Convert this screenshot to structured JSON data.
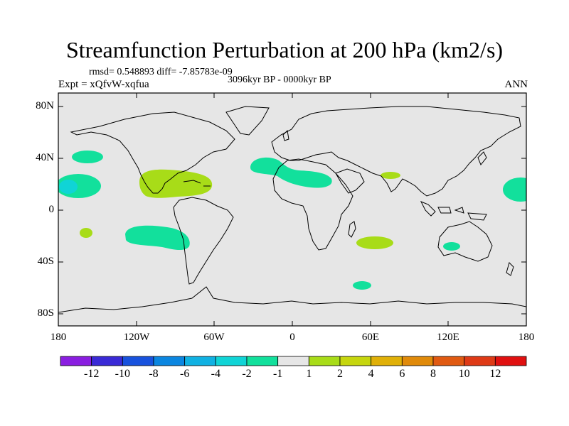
{
  "title": "Streamfunction Perturbation at 200 hPa (km2/s)",
  "stats_line": "rmsd= 0.548893 diff= -7.85783e-09",
  "period": "3096kyr BP - 0000kyr BP",
  "experiment": "Expt = xQfvW-xqfua",
  "season": "ANN",
  "lat_ticks": [
    "80N",
    "40N",
    "0",
    "40S",
    "80S"
  ],
  "lon_ticks": [
    "180",
    "120W",
    "60W",
    "0",
    "60E",
    "120E",
    "180"
  ],
  "colorbar": {
    "labels": [
      "-12",
      "-10",
      "-8",
      "-6",
      "-4",
      "-2",
      "-1",
      "1",
      "2",
      "4",
      "6",
      "8",
      "10",
      "12"
    ],
    "colors": [
      "#8a1ee0",
      "#3a2ad6",
      "#1852dd",
      "#0b86e0",
      "#10b1e2",
      "#10d4d6",
      "#12e09c",
      "#e6e6e6",
      "#a8dc18",
      "#c6d60e",
      "#e0b008",
      "#e08a0a",
      "#e05a12",
      "#de3a16",
      "#e01010"
    ]
  },
  "chart_data": {
    "type": "filled-contour-map",
    "variable": "Streamfunction perturbation at 200 hPa",
    "units": "km2/s",
    "projection": "cylindrical equidistant",
    "lon_range": [
      -180,
      180
    ],
    "lat_range": [
      -90,
      90
    ],
    "anomaly_regions": [
      {
        "name": "north-pacific-east",
        "lon": -150,
        "lat": 38,
        "band": "-2 to -1"
      },
      {
        "name": "hawaii-region",
        "lon": -160,
        "lat": 18,
        "band": "-2 to -1"
      },
      {
        "name": "hawaii-core",
        "lon": -170,
        "lat": 17,
        "band": "-4 to -2"
      },
      {
        "name": "caribbean-gulf",
        "lon": -100,
        "lat": 20,
        "band": "1 to 2"
      },
      {
        "name": "north-atlantic-africa",
        "lon": 0,
        "lat": 28,
        "band": "-2 to -1"
      },
      {
        "name": "india",
        "lon": 75,
        "lat": 25,
        "band": "1 to 2"
      },
      {
        "name": "west-pacific",
        "lon": 175,
        "lat": 15,
        "band": "-2 to -1"
      },
      {
        "name": "south-pacific-small",
        "lon": -155,
        "lat": -18,
        "band": "1 to 2"
      },
      {
        "name": "south-pacific-large",
        "lon": -110,
        "lat": -22,
        "band": "-2 to -1"
      },
      {
        "name": "south-indian-ocean",
        "lon": 64,
        "lat": -25,
        "band": "1 to 2"
      },
      {
        "name": "australia",
        "lon": 122,
        "lat": -28,
        "band": "-2 to -1"
      },
      {
        "name": "southern-ocean",
        "lon": 52,
        "lat": -58,
        "band": "-2 to -1"
      }
    ]
  }
}
